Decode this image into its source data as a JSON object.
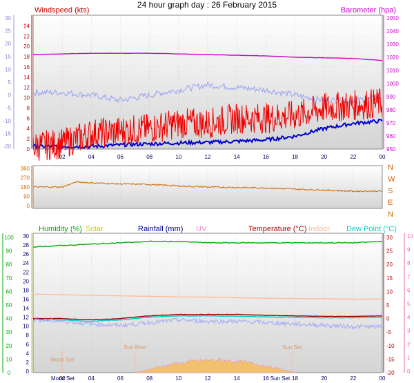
{
  "title": "24 hour graph day : 26 February 2015",
  "time_labels": [
    "02",
    "04",
    "06",
    "08",
    "10",
    "12",
    "14",
    "16",
    "18",
    "20",
    "22",
    "00"
  ],
  "chart_data": [
    {
      "type": "line",
      "name": "wind-baro-panel",
      "left_label": "Windspeed (kts)",
      "right_label": "Barometer (hpa)",
      "colors": {
        "windspeed": "#ee0000",
        "gust_avg": "#0000cc",
        "barometer": "#cc00cc",
        "secondary": "#a0a8f0"
      },
      "left_ticks": [
        "24",
        "22",
        "20",
        "18",
        "16",
        "14",
        "12",
        "10",
        "8",
        "6",
        "4",
        "2",
        "0"
      ],
      "far_left_ticks": [
        "30",
        "25",
        "20",
        "15",
        "10",
        "5",
        "0",
        "-5",
        "-10",
        "-15",
        "-20"
      ],
      "right_ticks": [
        "1050",
        "1040",
        "1030",
        "1020",
        "1010",
        "1000",
        "990",
        "980",
        "970",
        "960",
        "950"
      ],
      "ylim_left": [
        0,
        25
      ],
      "ylim_right": [
        950,
        1052
      ],
      "x": [
        0,
        2,
        4,
        6,
        8,
        10,
        12,
        14,
        16,
        18,
        20,
        22,
        24
      ],
      "series": [
        {
          "key": "barometer",
          "axis": "right",
          "values": [
            1022,
            1022.5,
            1023,
            1023,
            1023,
            1022.5,
            1022,
            1021.5,
            1021,
            1020,
            1019.5,
            1019,
            1017.5
          ]
        },
        {
          "key": "secondary",
          "axis": "left",
          "values": [
            11,
            11,
            10.5,
            9.5,
            10.5,
            11.5,
            12.5,
            12,
            11.5,
            10.5,
            9.5,
            9.5,
            10
          ]
        },
        {
          "key": "gust_avg",
          "axis": "left",
          "values": [
            0.5,
            0.5,
            0.5,
            0.8,
            1,
            1.2,
            1.3,
            1.5,
            1.8,
            2.5,
            4,
            5,
            5.5
          ]
        },
        {
          "key": "windspeed",
          "axis": "left",
          "values": [
            0.5,
            1,
            3,
            3.5,
            4,
            5,
            5,
            6,
            6,
            6.5,
            8,
            8.5,
            9
          ]
        }
      ]
    },
    {
      "type": "line",
      "name": "wind-direction-panel",
      "left_ticks": [
        "360",
        "270",
        "180",
        "90",
        "0"
      ],
      "right_ticks": [
        "N",
        "W",
        "S",
        "E",
        "N"
      ],
      "ylim": [
        0,
        360
      ],
      "colors": {
        "direction": "#cc6600"
      },
      "x": [
        0,
        2,
        3,
        4,
        6,
        8,
        10,
        12,
        14,
        16,
        18,
        20,
        22,
        24
      ],
      "series": [
        {
          "key": "direction",
          "values": [
            180,
            180,
            230,
            220,
            210,
            205,
            190,
            180,
            175,
            170,
            160,
            150,
            140,
            140
          ]
        }
      ]
    },
    {
      "type": "line",
      "name": "temp-hum-panel",
      "legend": [
        {
          "label": "Humidity (%)",
          "color": "#00aa00"
        },
        {
          "label": "Solar",
          "color": "#cccc00"
        },
        {
          "label": "Rainfall (mm)",
          "color": "#000099"
        },
        {
          "label": "UV",
          "color": "#ee88cc"
        },
        {
          "label": "Temperature (°C)",
          "color": "#aa0000"
        },
        {
          "label": "Indoor",
          "color": "#ffbb99"
        },
        {
          "label": "Dew Point (°C)",
          "color": "#00cccc"
        }
      ],
      "ticks_humidity": [
        "100",
        "90",
        "80",
        "70",
        "60",
        "50",
        "40",
        "30",
        "20",
        "10",
        "0"
      ],
      "ticks_solar": [
        "30",
        "28",
        "26",
        "24",
        "22",
        "20",
        "18",
        "16",
        "14",
        "12",
        "10",
        "8",
        "6",
        "4",
        "2",
        "0"
      ],
      "ticks_temp": [
        "30",
        "25",
        "20",
        "15",
        "10",
        "5",
        "0",
        "-5",
        "-10",
        "-15",
        "-20"
      ],
      "ticks_uv": [
        "10",
        "9",
        "8",
        "7",
        "6",
        "5",
        "4",
        "3",
        "2",
        "1",
        "0"
      ],
      "ylim_temp": [
        -20,
        30
      ],
      "x": [
        0,
        2,
        4,
        6,
        8,
        10,
        12,
        14,
        16,
        18,
        20,
        22,
        24
      ],
      "series": [
        {
          "key": "humidity",
          "axis": "humidity",
          "values": [
            93,
            94,
            95,
            96,
            97,
            97,
            96,
            96,
            96,
            96,
            96,
            96,
            97
          ]
        },
        {
          "key": "temperature",
          "axis": "temp",
          "values": [
            0,
            0,
            -0.5,
            0,
            1,
            1.5,
            1.5,
            1.5,
            1.2,
            1,
            0.8,
            0.8,
            1
          ]
        },
        {
          "key": "dewpoint",
          "axis": "temp",
          "values": [
            -0.5,
            -0.5,
            -1,
            -0.5,
            0.5,
            1,
            1,
            0.8,
            0.6,
            0.5,
            0.3,
            0.3,
            0.5
          ]
        },
        {
          "key": "indoor",
          "axis": "temp",
          "values": [
            9,
            8.8,
            8.6,
            8.4,
            8.2,
            8,
            7.9,
            7.7,
            7.5,
            7.4,
            7.3,
            7.2,
            7.2
          ]
        },
        {
          "key": "secondary",
          "axis": "temp",
          "values": [
            -0.5,
            -1,
            -2,
            -2.5,
            -1.5,
            -0.5,
            -1,
            -1,
            -1.5,
            -2,
            -2.5,
            -3,
            -3
          ]
        }
      ],
      "markers": [
        {
          "label": "Moon Set",
          "hour": 2.0
        },
        {
          "label": "Sun Rise",
          "hour": 7.0
        },
        {
          "label": "Sun Set",
          "hour": 17.8
        }
      ],
      "bottom_extra_labels": [
        "Moon",
        "Set",
        "Sun Set"
      ]
    }
  ]
}
